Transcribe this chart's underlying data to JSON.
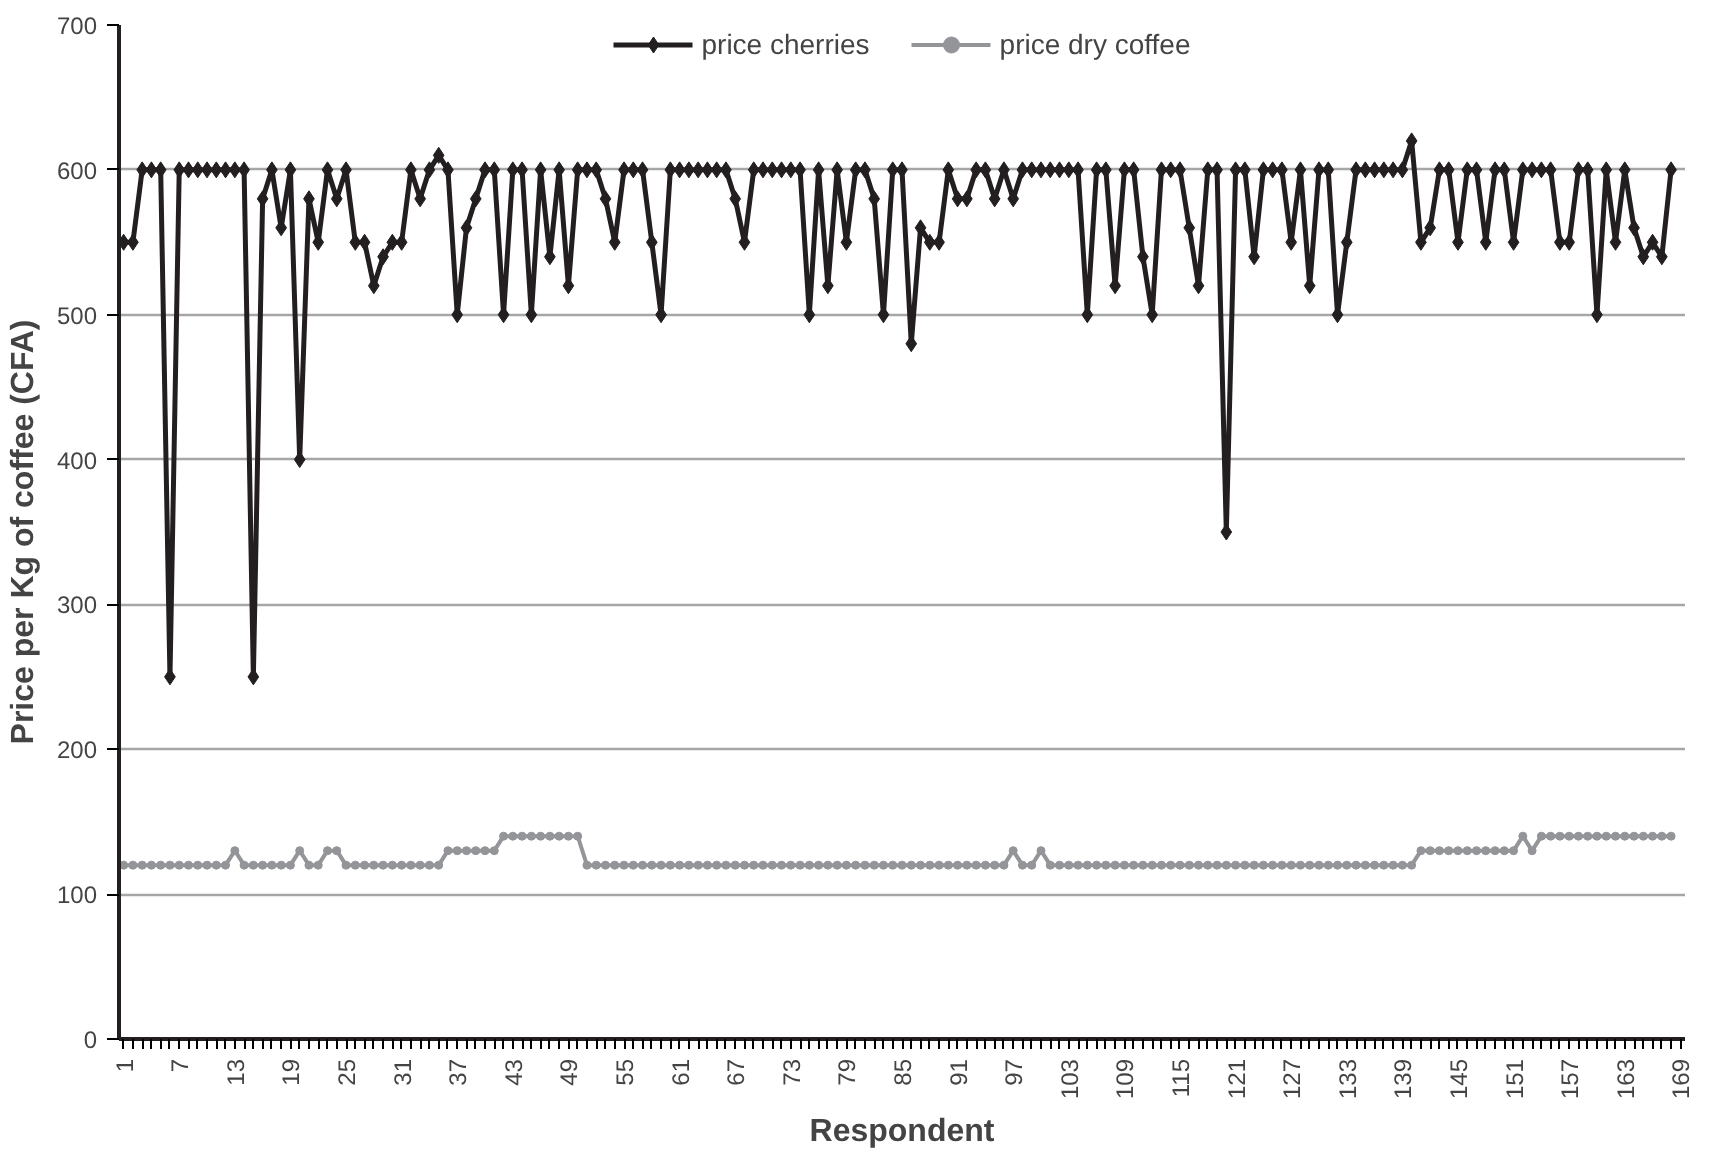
{
  "chart_data": {
    "type": "line",
    "xlabel": "Respondent",
    "ylabel": "Price per Kg of coffee (CFA)",
    "categories": [
      "1",
      null,
      null,
      null,
      null,
      null,
      "7",
      null,
      null,
      null,
      null,
      null,
      "13",
      null,
      null,
      null,
      null,
      null,
      "19",
      null,
      null,
      null,
      null,
      null,
      "25",
      null,
      null,
      null,
      null,
      null,
      "31",
      null,
      null,
      null,
      null,
      null,
      "37",
      null,
      null,
      null,
      null,
      null,
      "43",
      null,
      null,
      null,
      null,
      null,
      "49",
      null,
      null,
      null,
      null,
      null,
      "55",
      null,
      null,
      null,
      null,
      null,
      "61",
      null,
      null,
      null,
      null,
      null,
      "67",
      null,
      null,
      null,
      null,
      null,
      "73",
      null,
      null,
      null,
      null,
      null,
      "79",
      null,
      null,
      null,
      null,
      null,
      "85",
      null,
      null,
      null,
      null,
      null,
      "91",
      null,
      null,
      null,
      null,
      null,
      "97",
      null,
      null,
      null,
      null,
      null,
      "103",
      null,
      null,
      null,
      null,
      null,
      "109",
      null,
      null,
      null,
      null,
      null,
      "115",
      null,
      null,
      null,
      null,
      null,
      "121",
      null,
      null,
      null,
      null,
      null,
      "127",
      null,
      null,
      null,
      null,
      null,
      "133",
      null,
      null,
      null,
      null,
      null,
      "139",
      null,
      null,
      null,
      null,
      null,
      "145",
      null,
      null,
      null,
      null,
      null,
      "151",
      null,
      null,
      null,
      null,
      null,
      "157",
      null,
      null,
      null,
      null,
      null,
      "163",
      null,
      null,
      null,
      null,
      null,
      "169"
    ],
    "series": [
      {
        "name": "price cherries",
        "color": "#231f20",
        "marker": "diamond",
        "values": [
          550,
          550,
          600,
          600,
          600,
          250,
          600,
          600,
          600,
          600,
          600,
          600,
          600,
          600,
          250,
          580,
          600,
          560,
          600,
          400,
          580,
          550,
          600,
          580,
          600,
          550,
          550,
          520,
          540,
          550,
          550,
          600,
          580,
          600,
          610,
          600,
          500,
          560,
          580,
          600,
          600,
          500,
          600,
          600,
          500,
          600,
          540,
          600,
          520,
          600,
          600,
          600,
          580,
          550,
          600,
          600,
          600,
          550,
          500,
          600,
          600,
          600,
          600,
          600,
          600,
          600,
          580,
          550,
          600,
          600,
          600,
          600,
          600,
          600,
          500,
          600,
          520,
          600,
          550,
          600,
          600,
          580,
          500,
          600,
          600,
          480,
          560,
          550,
          550,
          600,
          580,
          580,
          600,
          600,
          580,
          600,
          580,
          600,
          600,
          600,
          600,
          600,
          600,
          600,
          500,
          600,
          600,
          520,
          600,
          600,
          540,
          500,
          600,
          600,
          600,
          560,
          520,
          600,
          600,
          350,
          600,
          600,
          540,
          600,
          600,
          600,
          550,
          600,
          520,
          600,
          600,
          500,
          550,
          600,
          600,
          600,
          600,
          600,
          600,
          620,
          550,
          560,
          600,
          600,
          550,
          600,
          600,
          550,
          600,
          600,
          550,
          600,
          600,
          600,
          600,
          550,
          550,
          600,
          600,
          500,
          600,
          550,
          600,
          560,
          540,
          550,
          540,
          600,
          null
        ]
      },
      {
        "name": "price dry coffee",
        "color": "#939598",
        "marker": "circle",
        "values": [
          120,
          120,
          120,
          120,
          120,
          120,
          120,
          120,
          120,
          120,
          120,
          120,
          130,
          120,
          120,
          120,
          120,
          120,
          120,
          130,
          120,
          120,
          130,
          130,
          120,
          120,
          120,
          120,
          120,
          120,
          120,
          120,
          120,
          120,
          120,
          130,
          130,
          130,
          130,
          130,
          130,
          140,
          140,
          140,
          140,
          140,
          140,
          140,
          140,
          140,
          120,
          120,
          120,
          120,
          120,
          120,
          120,
          120,
          120,
          120,
          120,
          120,
          120,
          120,
          120,
          120,
          120,
          120,
          120,
          120,
          120,
          120,
          120,
          120,
          120,
          120,
          120,
          120,
          120,
          120,
          120,
          120,
          120,
          120,
          120,
          120,
          120,
          120,
          120,
          120,
          120,
          120,
          120,
          120,
          120,
          120,
          130,
          120,
          120,
          130,
          120,
          120,
          120,
          120,
          120,
          120,
          120,
          120,
          120,
          120,
          120,
          120,
          120,
          120,
          120,
          120,
          120,
          120,
          120,
          120,
          120,
          120,
          120,
          120,
          120,
          120,
          120,
          120,
          120,
          120,
          120,
          120,
          120,
          120,
          120,
          120,
          120,
          120,
          120,
          120,
          130,
          130,
          130,
          130,
          130,
          130,
          130,
          130,
          130,
          130,
          130,
          140,
          130,
          140,
          140,
          140,
          140,
          140,
          140,
          140,
          140,
          140,
          140,
          140,
          140,
          140,
          140,
          140,
          null
        ]
      }
    ],
    "ylim": [
      0,
      700
    ],
    "yticks": [
      0,
      100,
      200,
      300,
      400,
      500,
      600,
      700
    ],
    "grid": "y",
    "legend": "top",
    "line_style": "solid"
  }
}
